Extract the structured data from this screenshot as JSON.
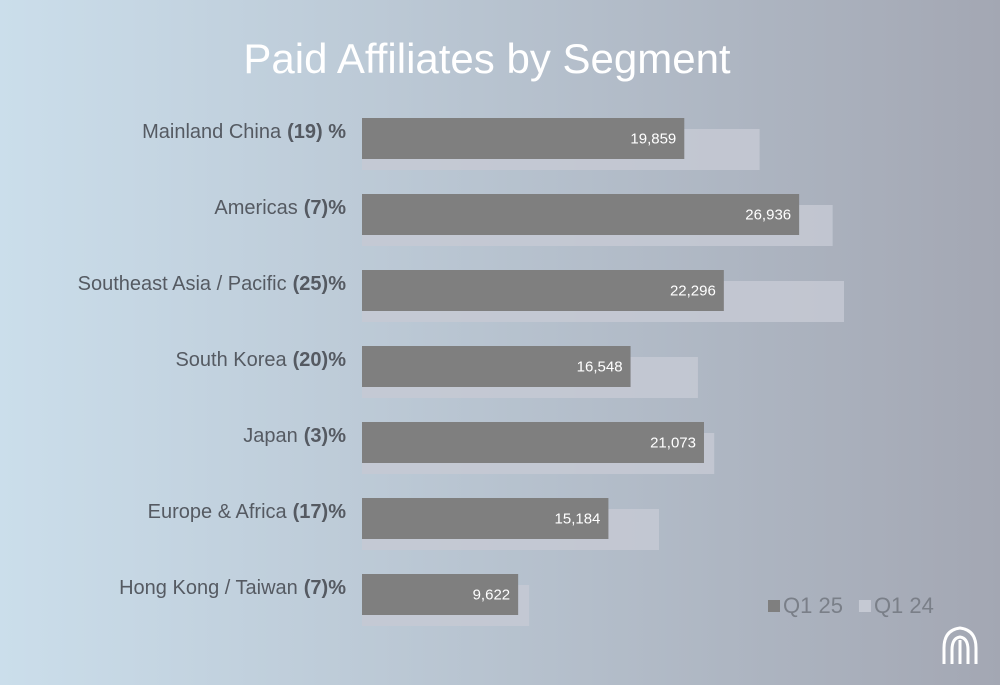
{
  "chart_data": {
    "type": "bar",
    "orientation": "horizontal",
    "title": "Paid Affiliates by Segment",
    "categories": [
      "Mainland China",
      "Americas",
      "Southeast Asia / Pacific",
      "South Korea",
      "Japan",
      "Europe & Africa",
      "Hong Kong / Taiwan"
    ],
    "change_labels": [
      "(19) %",
      "(7)%",
      "(25)%",
      "(20)%",
      "(3)%",
      "(17)%",
      "(7)%"
    ],
    "series": [
      {
        "name": "Q1 25",
        "color": "#7f7f7f",
        "values": [
          19859,
          26936,
          22296,
          16548,
          21073,
          15184,
          9622
        ],
        "value_labels": [
          "19,859",
          "26,936",
          "22,296",
          "16,548",
          "21,073",
          "15,184",
          "9,622"
        ]
      },
      {
        "name": "Q1 24",
        "color": "#c5c9d3",
        "values": [
          24500,
          29000,
          29700,
          20700,
          21700,
          18300,
          10300
        ]
      }
    ],
    "legend": "bottom-right"
  }
}
